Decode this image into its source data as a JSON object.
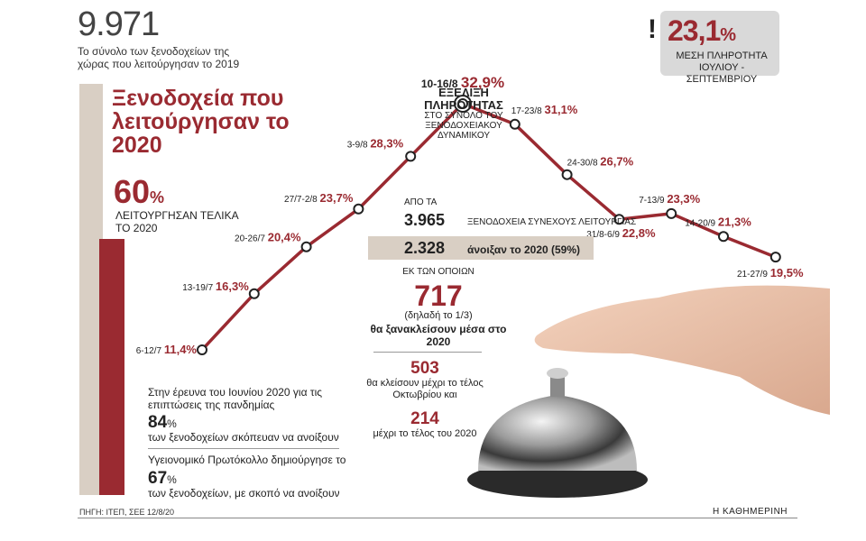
{
  "header": {
    "total_number": "9.971",
    "total_desc": "Το σύνολο των ξενοδοχείων της χώρας που λειτούργησαν το 2019"
  },
  "left_panel": {
    "title": "Ξενοδοχεία που λειτούργησαν το 2020",
    "pct_operated": "60",
    "pct_unit": "%",
    "pct_operated_desc": "ΛΕΙΤΟΥΡΓΗΣΑΝ ΤΕΛΙΚΑ ΤΟ 2020",
    "survey_intro": "Στην έρευνα του Ιουνίου 2020 για τις επιπτώσεις της πανδημίας",
    "pct_84": "84",
    "pct_84_desc": "των ξενοδοχείων σκόπευαν να ανοίξουν",
    "protocol_intro": "Υγειονομικό Πρωτόκολλο δημιούργησε το",
    "pct_67": "67",
    "pct_67_desc": "των ξενοδοχείων, με σκοπό να ανοίξουν",
    "bar_colors": {
      "total": "#d9cfc4",
      "operated": "#9a2a31"
    }
  },
  "average": {
    "exclaim": "!",
    "value": "23,1",
    "unit": "%",
    "desc": "ΜΕΣΗ ΠΛΗΡΟΤΗΤΑ ΙΟΥΛΙΟΥ - ΣΕΠΤΕΜΒΡΙΟΥ"
  },
  "center": {
    "from_label": "ΑΠΟ ΤΑ",
    "stat_3965": "3.965",
    "stat_3965_desc": "ΞΕΝΟΔΟΧΕΙΑ ΣΥΝΕΧΟΥΣ ΛΕΙΤΟΥΡΓΙΑΣ",
    "stat_2328": "2.328",
    "stat_2328_desc": "άνοιξαν το 2020 (59%)",
    "of_which": "ΕΚ ΤΩΝ ΟΠΟΙΩΝ",
    "stat_717": "717",
    "stat_717_sub": "(δηλαδή το 1/3)",
    "stat_717_desc": "θα ξανακλείσουν μέσα στο 2020",
    "stat_503": "503",
    "stat_503_desc": "θα κλείσουν μέχρι το τέλος Οκτωβρίου και",
    "stat_214": "214",
    "stat_214_desc": "μέχρι το τέλος του 2020"
  },
  "footer": {
    "source": "ΠΗΓΗ: ΙΤΕΠ, ΣΕΕ 12/8/20",
    "brand": "Η ΚΑΘΗΜΕΡΙΝΗ"
  },
  "chart_data": {
    "type": "line",
    "title": "ΕΞΕΛΙΞΗ ΠΛΗΡΟΤΗΤΑΣ",
    "subtitle": "ΣΤΟ ΣΥΝΟΛΟ ΤΟΥ ΞΕΝΟΔΟΧΕΙΑΚΟΥ ΔΥΝΑΜΙΚΟΥ",
    "categories": [
      "6-12/7",
      "13-19/7",
      "20-26/7",
      "27/7-2/8",
      "3-9/8",
      "10-16/8",
      "17-23/8",
      "24-30/8",
      "31/8-6/9",
      "7-13/9",
      "14-20/9",
      "21-27/9"
    ],
    "values": [
      11.4,
      16.3,
      20.4,
      23.7,
      28.3,
      32.9,
      31.1,
      26.7,
      22.8,
      23.3,
      21.3,
      19.5
    ],
    "value_labels": [
      "11,4%",
      "16,3%",
      "20,4%",
      "23,7%",
      "28,3%",
      "32,9%",
      "31,1%",
      "26,7%",
      "22,8%",
      "23,3%",
      "21,3%",
      "19,5%"
    ],
    "unit": "%",
    "line_color": "#9a2a31",
    "highlight": "10-16/8"
  }
}
